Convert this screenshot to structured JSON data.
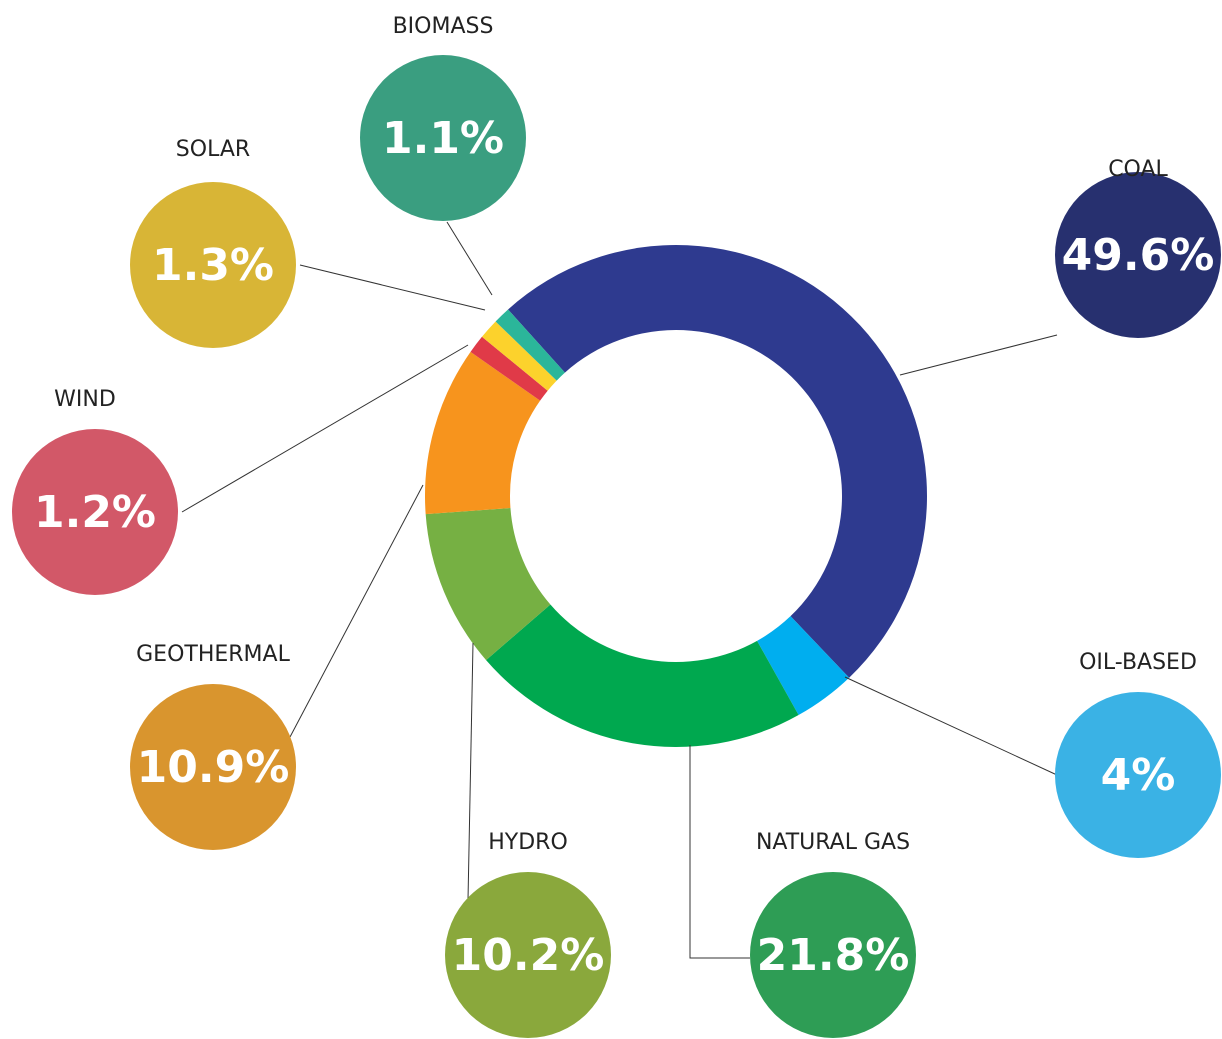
{
  "chart_data": {
    "type": "pie",
    "categories": [
      "COAL",
      "OIL-BASED",
      "NATURAL GAS",
      "HYDRO",
      "GEOTHERMAL",
      "WIND",
      "SOLAR",
      "BIOMASS"
    ],
    "values": [
      49.6,
      4,
      21.8,
      10.2,
      10.9,
      1.2,
      1.3,
      1.1
    ],
    "value_labels": [
      "49.6%",
      "4%",
      "21.8%",
      "10.2%",
      "10.9%",
      "1.2%",
      "1.3%",
      "1.1%"
    ],
    "colors": [
      "#2e3a8f",
      "#00aeef",
      "#00a84f",
      "#76b043",
      "#f7941d",
      "#e03a48",
      "#fcd22c",
      "#2bb69a"
    ],
    "bubble_colors": [
      "#27306f",
      "#3ab2e5",
      "#2e9d55",
      "#8aa83c",
      "#d9952e",
      "#d25868",
      "#d8b536",
      "#3a9e80"
    ]
  }
}
